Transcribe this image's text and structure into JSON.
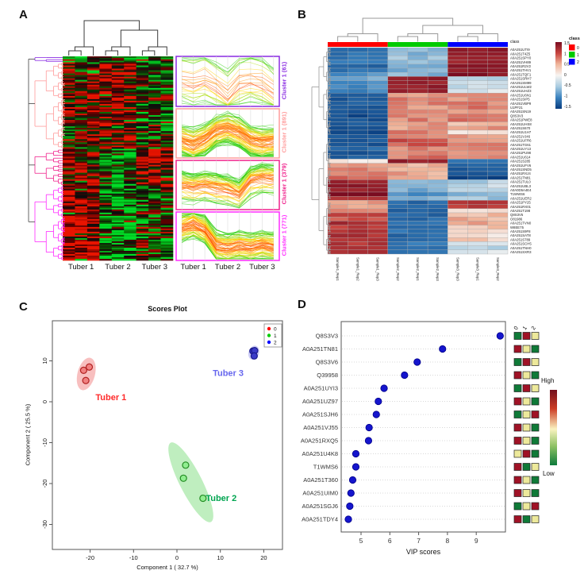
{
  "panel_labels": {
    "a": "A",
    "b": "B",
    "c": "C",
    "d": "D"
  },
  "chart_data": [
    {
      "id": "A",
      "type": "heatmap",
      "colormap": "green-black-red",
      "col_group_labels": [
        "Tuber 1",
        "Tuber 2",
        "Tuber 3"
      ],
      "profile_col_labels": [
        "Tuber 1",
        "Tuber 2",
        "Tuber 3"
      ],
      "clusters": [
        {
          "label": "Cluster 1 (61)",
          "size": 61,
          "color": "#8A2BE2",
          "heat_means": [
            -0.1,
            0.05,
            -0.3
          ],
          "profile": [
            0.55,
            0.5,
            0.58,
            0.45,
            0.25,
            0.5,
            0.55,
            0.5,
            0.32
          ],
          "lines": 25,
          "spread": 0.5
        },
        {
          "label": "Cluster 1 (891)",
          "size": 891,
          "color": "#FF9B9B",
          "heat_means": [
            0.1,
            0.45,
            -0.2
          ],
          "profile": [
            0.35,
            0.28,
            0.38,
            0.55,
            0.6,
            0.52,
            0.35,
            0.3,
            0.33
          ],
          "lines": 85,
          "spread": 0.32
        },
        {
          "label": "Cluster 1 (379)",
          "size": 379,
          "color": "#F0218C",
          "heat_means": [
            0.3,
            -0.3,
            0.45
          ],
          "profile": [
            0.45,
            0.42,
            0.46,
            0.42,
            0.38,
            0.3,
            0.55,
            0.62,
            0.6
          ],
          "lines": 60,
          "spread": 0.3
        },
        {
          "label": "Cluster 1 (771)",
          "size": 771,
          "color": "#FF2BFF",
          "heat_means": [
            0.55,
            -0.45,
            -0.15
          ],
          "profile": [
            0.68,
            0.75,
            0.62,
            0.3,
            0.25,
            0.3,
            0.27,
            0.32,
            0.28
          ],
          "lines": 80,
          "spread": 0.3
        }
      ]
    },
    {
      "id": "B",
      "type": "heatmap",
      "colormap": "blue-white-red",
      "class_label": "class",
      "class_legend": {
        "title": "class",
        "items": [
          {
            "label": "0",
            "color": "#FE0000"
          },
          {
            "label": "1",
            "color": "#00CB00"
          },
          {
            "label": "2",
            "color": "#0000FE"
          }
        ]
      },
      "scale_ticks": [
        "1.5",
        "1",
        "0.5",
        "0",
        "-0.5",
        "-1",
        "-1.5"
      ],
      "col_classes": [
        "0",
        "0",
        "0",
        "1",
        "1",
        "1",
        "2",
        "2",
        "2"
      ],
      "col_labels": [
        "Sample1_Rep1",
        "Sample1_Rep2",
        "Sample1_Rep3",
        "Sample2_Rep2",
        "Sample2_Rep1",
        "Sample2_Rep3",
        "Sample3_Rep3",
        "Sample3_Rep1",
        "Sample3_Rep2"
      ],
      "rows": [
        {
          "id": "A0A251UTI9",
          "values": [
            -1.0,
            -0.45,
            1.35
          ]
        },
        {
          "id": "A0A251T4Z5",
          "values": [
            -0.95,
            -0.5,
            1.3
          ]
        },
        {
          "id": "A0A251SPY0",
          "values": [
            -1.0,
            -0.4,
            1.3
          ]
        },
        {
          "id": "A0A251VH89",
          "values": [
            -0.9,
            -0.5,
            1.25
          ]
        },
        {
          "id": "A0A251R2V2",
          "values": [
            -1.1,
            -0.6,
            1.35
          ]
        },
        {
          "id": "A0A251THV1",
          "values": [
            -0.95,
            -0.55,
            1.3
          ]
        },
        {
          "id": "A0A251TQF1",
          "values": [
            -0.7,
            -0.5,
            1.4
          ]
        },
        {
          "id": "A0A251SRH7",
          "values": [
            -0.6,
            1.3,
            -0.35
          ]
        },
        {
          "id": "A0A251SM99",
          "values": [
            -0.8,
            1.25,
            -0.2
          ]
        },
        {
          "id": "A0A251ULW2",
          "values": [
            -0.75,
            1.3,
            -0.25
          ]
        },
        {
          "id": "A0A251UHZ3",
          "values": [
            -0.85,
            1.2,
            -0.15
          ]
        },
        {
          "id": "A0A251U6N1",
          "values": [
            -1.2,
            0.5,
            0.45
          ]
        },
        {
          "id": "A0A251SIP5",
          "values": [
            -1.25,
            0.55,
            0.5
          ]
        },
        {
          "id": "A0A251VBP9",
          "values": [
            -1.1,
            0.6,
            0.55
          ]
        },
        {
          "id": "U1PF21",
          "values": [
            -1.3,
            0.5,
            0.6
          ]
        },
        {
          "id": "A0A251SN19",
          "values": [
            -1.2,
            0.45,
            0.5
          ]
        },
        {
          "id": "Q8S3V3",
          "values": [
            -1.35,
            0.5,
            0.55
          ]
        },
        {
          "id": "A0A251PWE8",
          "values": [
            -1.25,
            0.55,
            0.6
          ]
        },
        {
          "id": "A0A251UHS8",
          "values": [
            -1.2,
            0.5,
            0.3
          ]
        },
        {
          "id": "A0A251S670",
          "values": [
            -1.3,
            0.45,
            0.5
          ]
        },
        {
          "id": "A0A251U1H7",
          "values": [
            -1.4,
            0.55,
            0.1
          ]
        },
        {
          "id": "A0A251VJ46",
          "values": [
            -1.25,
            0.6,
            0.5
          ]
        },
        {
          "id": "A0A251UFR6",
          "values": [
            -1.2,
            0.8,
            0.45
          ]
        },
        {
          "id": "A0A251TG61",
          "values": [
            -1.3,
            0.7,
            0.5
          ]
        },
        {
          "id": "A0A251UY13",
          "values": [
            -1.1,
            0.55,
            0.6
          ]
        },
        {
          "id": "A0A251PU98",
          "values": [
            -1.35,
            0.5,
            0.55
          ]
        },
        {
          "id": "A0A251U614",
          "values": [
            -1.2,
            0.6,
            0.5
          ]
        },
        {
          "id": "A0A251S285",
          "values": [
            0.1,
            1.25,
            -0.9
          ]
        },
        {
          "id": "A0A251UFV6",
          "values": [
            0.5,
            0.35,
            -1.1
          ]
        },
        {
          "id": "A0A251SND5",
          "values": [
            0.55,
            0.3,
            -1.2
          ]
        },
        {
          "id": "A0A251RXJ4",
          "values": [
            0.5,
            0.4,
            -1.15
          ]
        },
        {
          "id": "A0A251TN81",
          "values": [
            0.6,
            0.35,
            -1.45
          ]
        },
        {
          "id": "A0A251TUL0",
          "values": [
            1.2,
            -0.5,
            -0.3
          ]
        },
        {
          "id": "A0A251UBL3",
          "values": [
            1.3,
            -0.45,
            -0.25
          ]
        },
        {
          "id": "A0A0D5A4E4",
          "values": [
            1.25,
            -0.55,
            -0.35
          ]
        },
        {
          "id": "T1WWS6",
          "values": [
            1.45,
            -0.7,
            -0.5
          ]
        },
        {
          "id": "A0A251UER2",
          "values": [
            1.0,
            -0.5,
            -0.4
          ]
        },
        {
          "id": "A0A251PY25",
          "values": [
            0.4,
            -1.05,
            1.0
          ]
        },
        {
          "id": "A0A251RX01",
          "values": [
            0.45,
            -1.1,
            0.95
          ]
        },
        {
          "id": "A0A251T198",
          "values": [
            0.5,
            -1.15,
            0.2
          ]
        },
        {
          "id": "Q8S3V5",
          "values": [
            0.8,
            -1.1,
            0.3
          ]
        },
        {
          "id": "O81986",
          "values": [
            0.75,
            -1.05,
            0.35
          ]
        },
        {
          "id": "A0A251TVN0",
          "values": [
            1.1,
            -1.0,
            0.4
          ]
        },
        {
          "id": "W8EE75",
          "values": [
            0.9,
            -1.1,
            0.3
          ]
        },
        {
          "id": "A0A251S9F8",
          "values": [
            1.0,
            -1.0,
            0.1
          ]
        },
        {
          "id": "A0A251SAT8",
          "values": [
            1.05,
            -1.05,
            0.15
          ]
        },
        {
          "id": "A0A251S789",
          "values": [
            1.1,
            -1.0,
            0.2
          ]
        },
        {
          "id": "A0A251SCH5",
          "values": [
            1.0,
            -0.95,
            -0.2
          ]
        },
        {
          "id": "A0A251TNH0",
          "values": [
            1.05,
            -1.0,
            -0.25
          ]
        },
        {
          "id": "A0A251SXR3",
          "values": [
            1.1,
            -0.95,
            -0.15
          ]
        }
      ]
    },
    {
      "id": "C",
      "type": "scatter",
      "title": "Scores Plot",
      "xlabel": "Component 1 ( 32.7 %)",
      "ylabel": "Component 2 ( 25.5 %)",
      "xticks": [
        -20,
        -10,
        0,
        10,
        20
      ],
      "yticks": [
        10,
        0,
        -10,
        -20,
        -30
      ],
      "xlim": [
        -28.7,
        24.3
      ],
      "ylim": [
        -36.1,
        19.8
      ],
      "legend": [
        {
          "label": "0",
          "color": "#FF0000"
        },
        {
          "label": "1",
          "color": "#00CC00"
        },
        {
          "label": "2",
          "color": "#0000FF"
        }
      ],
      "series": [
        {
          "name": "0",
          "fill": "#F08080",
          "stroke": "#B22222",
          "points": [
            [
              -21.5,
              7.7
            ],
            [
              -20.2,
              8.5
            ],
            [
              -21.0,
              5.2
            ]
          ],
          "ellipse": {
            "cx": -20.9,
            "cy": 6.8,
            "rx": 11,
            "ry": 21,
            "angle": 15,
            "fill": "#F5A9A9"
          },
          "label": {
            "text": "Tuber 1",
            "x": -15.2,
            "y": 0.4,
            "color": "#FF2A2A"
          }
        },
        {
          "name": "1",
          "fill": "#90EE90",
          "stroke": "#228B22",
          "points": [
            [
              2.0,
              -15.5
            ],
            [
              1.5,
              -18.7
            ],
            [
              6.0,
              -23.6
            ]
          ],
          "ellipse": {
            "cx": 3.2,
            "cy": -19.7,
            "rx": 14,
            "ry": 56,
            "angle": -27,
            "fill": "#A9E8A9"
          },
          "label": {
            "text": "Tuber 2",
            "x": 10.2,
            "y": -24.3,
            "color": "#00A550"
          }
        },
        {
          "name": "2",
          "fill": "#3C3CC8",
          "stroke": "#1A1A8C",
          "points": [
            [
              17.5,
              12.4
            ],
            [
              17.9,
              12.5
            ],
            [
              17.8,
              11.2
            ]
          ],
          "ellipse": {
            "cx": 17.7,
            "cy": 12.0,
            "rx": 6.5,
            "ry": 9,
            "angle": 20,
            "fill": "#B9B9F0"
          },
          "label": {
            "text": "Tuber 3",
            "x": 11.8,
            "y": 6.3,
            "color": "#6666EE"
          }
        }
      ]
    },
    {
      "id": "D",
      "type": "scatter",
      "xlabel": "VIP scores",
      "xticks": [
        5,
        6,
        7,
        8,
        9
      ],
      "xlim": [
        4.34,
        10.0
      ],
      "col_headers": [
        "0",
        "1",
        "2"
      ],
      "legend": {
        "high": "High",
        "low": "Low"
      },
      "cell_colors": {
        "green": "#0F7A38",
        "red": "#A01226",
        "yellow": "#EDE99B"
      },
      "rows": [
        {
          "id": "Q8S3V3",
          "vip": 9.83,
          "cells": [
            "green",
            "red",
            "yellow"
          ]
        },
        {
          "id": "A0A251TN81",
          "vip": 7.83,
          "cells": [
            "red",
            "yellow",
            "green"
          ]
        },
        {
          "id": "Q8S3V6",
          "vip": 6.95,
          "cells": [
            "green",
            "red",
            "yellow"
          ]
        },
        {
          "id": "Q39958",
          "vip": 6.51,
          "cells": [
            "red",
            "yellow",
            "green"
          ]
        },
        {
          "id": "A0A251UYI3",
          "vip": 5.8,
          "cells": [
            "green",
            "red",
            "yellow"
          ]
        },
        {
          "id": "A0A251UZ97",
          "vip": 5.6,
          "cells": [
            "red",
            "yellow",
            "green"
          ]
        },
        {
          "id": "A0A251SJH6",
          "vip": 5.53,
          "cells": [
            "green",
            "yellow",
            "red"
          ]
        },
        {
          "id": "A0A251VJ55",
          "vip": 5.28,
          "cells": [
            "red",
            "yellow",
            "green"
          ]
        },
        {
          "id": "A0A251RXQ5",
          "vip": 5.26,
          "cells": [
            "red",
            "yellow",
            "green"
          ]
        },
        {
          "id": "A0A251U4K8",
          "vip": 4.82,
          "cells": [
            "yellow",
            "red",
            "green"
          ]
        },
        {
          "id": "T1WMS6",
          "vip": 4.82,
          "cells": [
            "red",
            "green",
            "yellow"
          ]
        },
        {
          "id": "A0A251T360",
          "vip": 4.71,
          "cells": [
            "red",
            "yellow",
            "green"
          ]
        },
        {
          "id": "A0A251UIM0",
          "vip": 4.65,
          "cells": [
            "red",
            "yellow",
            "green"
          ]
        },
        {
          "id": "A0A251SGJ6",
          "vip": 4.61,
          "cells": [
            "green",
            "yellow",
            "red"
          ]
        },
        {
          "id": "A0A251TDY4",
          "vip": 4.56,
          "cells": [
            "red",
            "green",
            "yellow"
          ]
        }
      ]
    }
  ]
}
